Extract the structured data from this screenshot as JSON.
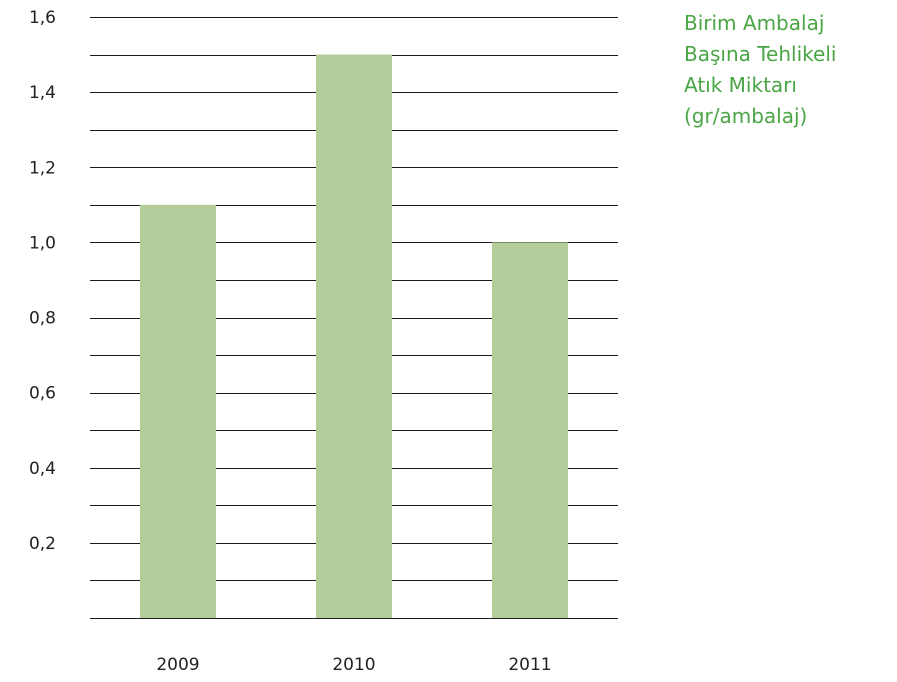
{
  "chart_data": {
    "type": "bar",
    "title_lines": [
      "Birim Ambalaj",
      "Başına Tehlikeli",
      "Atık Miktarı",
      "(gr/ambalaj)"
    ],
    "categories": [
      "2009",
      "2010",
      "2011"
    ],
    "values": [
      1.1,
      1.5,
      1.0
    ],
    "ylim": [
      0,
      1.6
    ],
    "y_ticks": [
      "0,2",
      "0,4",
      "0,6",
      "0,8",
      "1,0",
      "1,2",
      "1,4",
      "1,6"
    ],
    "grid": true,
    "minor_grid_step": 0.1,
    "colors": {
      "bar": "#b3cc99",
      "grid": "#1a1a1a",
      "title": "#4aa544"
    }
  }
}
